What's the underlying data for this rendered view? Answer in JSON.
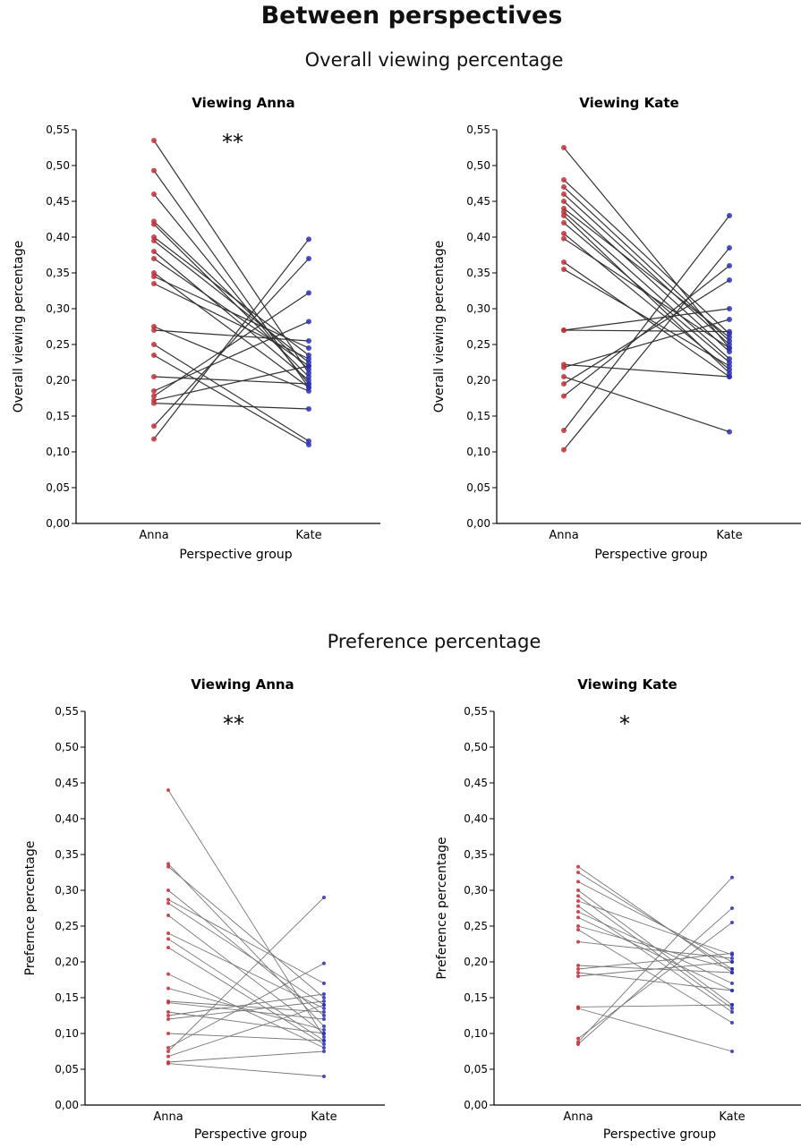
{
  "title": "Between perspectives",
  "sections": [
    {
      "title": "Overall viewing percentage"
    },
    {
      "title": "Preference percentage"
    }
  ],
  "chart_data": [
    {
      "type": "line",
      "title": "Viewing Anna",
      "xlabel": "Perspective group",
      "ylabel": "Overall viewing percentage",
      "categories": [
        "Anna",
        "Kate"
      ],
      "ylim": [
        0,
        0.55
      ],
      "yticks": [
        "0,00",
        "0,05",
        "0,10",
        "0,15",
        "0,20",
        "0,25",
        "0,30",
        "0,35",
        "0,40",
        "0,45",
        "0,50",
        "0,55"
      ],
      "significance": "**",
      "pairs": [
        [
          0.535,
          0.21
        ],
        [
          0.493,
          0.19
        ],
        [
          0.46,
          0.195
        ],
        [
          0.422,
          0.215
        ],
        [
          0.418,
          0.205
        ],
        [
          0.4,
          0.235
        ],
        [
          0.395,
          0.225
        ],
        [
          0.38,
          0.2
        ],
        [
          0.37,
          0.22
        ],
        [
          0.35,
          0.19
        ],
        [
          0.345,
          0.245
        ],
        [
          0.335,
          0.23
        ],
        [
          0.275,
          0.185
        ],
        [
          0.27,
          0.255
        ],
        [
          0.25,
          0.115
        ],
        [
          0.235,
          0.11
        ],
        [
          0.205,
          0.195
        ],
        [
          0.185,
          0.282
        ],
        [
          0.178,
          0.322
        ],
        [
          0.172,
          0.22
        ],
        [
          0.168,
          0.16
        ],
        [
          0.136,
          0.37
        ],
        [
          0.118,
          0.397
        ]
      ]
    },
    {
      "type": "line",
      "title": "Viewing Kate",
      "xlabel": "Perspective group",
      "ylabel": "Overall viewing percentage",
      "categories": [
        "Anna",
        "Kate"
      ],
      "ylim": [
        0,
        0.55
      ],
      "yticks": [
        "0,00",
        "0,05",
        "0,10",
        "0,15",
        "0,20",
        "0,25",
        "0,30",
        "0,35",
        "0,40",
        "0,45",
        "0,50",
        "0,55"
      ],
      "significance": "",
      "pairs": [
        [
          0.525,
          0.245
        ],
        [
          0.48,
          0.265
        ],
        [
          0.47,
          0.255
        ],
        [
          0.46,
          0.25
        ],
        [
          0.45,
          0.24
        ],
        [
          0.44,
          0.26
        ],
        [
          0.435,
          0.23
        ],
        [
          0.43,
          0.21
        ],
        [
          0.42,
          0.225
        ],
        [
          0.405,
          0.215
        ],
        [
          0.398,
          0.245
        ],
        [
          0.365,
          0.205
        ],
        [
          0.355,
          0.22
        ],
        [
          0.27,
          0.268
        ],
        [
          0.27,
          0.3
        ],
        [
          0.222,
          0.205
        ],
        [
          0.218,
          0.285
        ],
        [
          0.205,
          0.128
        ],
        [
          0.195,
          0.34
        ],
        [
          0.178,
          0.36
        ],
        [
          0.13,
          0.43
        ],
        [
          0.103,
          0.385
        ]
      ]
    },
    {
      "type": "line",
      "title": "Viewing Anna",
      "xlabel": "Perspective group",
      "ylabel": "Prefernce percentage",
      "categories": [
        "Anna",
        "Kate"
      ],
      "ylim": [
        0,
        0.55
      ],
      "yticks": [
        "0,00",
        "0,05",
        "0,10",
        "0,15",
        "0,20",
        "0,25",
        "0,30",
        "0,35",
        "0,40",
        "0,45",
        "0,50",
        "0,55"
      ],
      "significance": "**",
      "pairs": [
        [
          0.44,
          0.095
        ],
        [
          0.337,
          0.11
        ],
        [
          0.333,
          0.15
        ],
        [
          0.3,
          0.125
        ],
        [
          0.287,
          0.17
        ],
        [
          0.282,
          0.14
        ],
        [
          0.265,
          0.1
        ],
        [
          0.24,
          0.135
        ],
        [
          0.232,
          0.09
        ],
        [
          0.22,
          0.085
        ],
        [
          0.183,
          0.08
        ],
        [
          0.163,
          0.105
        ],
        [
          0.145,
          0.13
        ],
        [
          0.143,
          0.12
        ],
        [
          0.13,
          0.1
        ],
        [
          0.125,
          0.155
        ],
        [
          0.12,
          0.145
        ],
        [
          0.1,
          0.09
        ],
        [
          0.08,
          0.198
        ],
        [
          0.075,
          0.29
        ],
        [
          0.068,
          0.14
        ],
        [
          0.06,
          0.075
        ],
        [
          0.058,
          0.04
        ]
      ]
    },
    {
      "type": "line",
      "title": "Viewing Kate",
      "xlabel": "Perspective group",
      "ylabel": "Preference percentage",
      "categories": [
        "Anna",
        "Kate"
      ],
      "ylim": [
        0,
        0.55
      ],
      "yticks": [
        "0,00",
        "0,05",
        "0,10",
        "0,15",
        "0,20",
        "0,25",
        "0,30",
        "0,35",
        "0,40",
        "0,45",
        "0,50",
        "0,55"
      ],
      "significance": "*",
      "pairs": [
        [
          0.333,
          0.185
        ],
        [
          0.325,
          0.19
        ],
        [
          0.312,
          0.2
        ],
        [
          0.3,
          0.14
        ],
        [
          0.292,
          0.135
        ],
        [
          0.285,
          0.21
        ],
        [
          0.278,
          0.13
        ],
        [
          0.27,
          0.17
        ],
        [
          0.262,
          0.16
        ],
        [
          0.25,
          0.19
        ],
        [
          0.245,
          0.115
        ],
        [
          0.228,
          0.205
        ],
        [
          0.195,
          0.185
        ],
        [
          0.19,
          0.212
        ],
        [
          0.185,
          0.16
        ],
        [
          0.18,
          0.2
        ],
        [
          0.137,
          0.14
        ],
        [
          0.135,
          0.075
        ],
        [
          0.093,
          0.255
        ],
        [
          0.085,
          0.275
        ],
        [
          0.088,
          0.318
        ]
      ]
    }
  ]
}
